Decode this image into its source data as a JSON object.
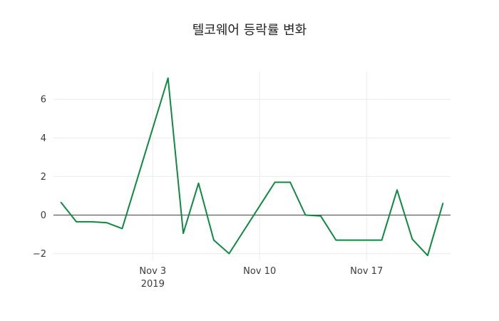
{
  "chart": {
    "title_color": "#222222",
    "line_color": "#0e8a40",
    "zero_line_color": "#444444",
    "grid_color": "#e9edf0",
    "tick_color": "#3b3b3b"
  },
  "chart_data": {
    "type": "line",
    "title": "텔코웨어 등락률 변화",
    "xlabel": "",
    "ylabel": "",
    "legend": "none",
    "grid": true,
    "x": [
      "Oct 28",
      "Oct 29",
      "Oct 30",
      "Oct 31",
      "Nov 1",
      "Nov 4",
      "Nov 5",
      "Nov 6",
      "Nov 7",
      "Nov 8",
      "Nov 11",
      "Nov 12",
      "Nov 13",
      "Nov 14",
      "Nov 15",
      "Nov 18",
      "Nov 19",
      "Nov 20",
      "Nov 21",
      "Nov 22"
    ],
    "day_offsets": [
      0,
      1,
      2,
      3,
      4,
      7,
      8,
      9,
      10,
      11,
      14,
      15,
      16,
      17,
      18,
      21,
      22,
      23,
      24,
      25
    ],
    "values": [
      0.65,
      -0.35,
      -0.35,
      -0.4,
      -0.7,
      7.1,
      -0.95,
      1.65,
      -1.3,
      -2.0,
      1.7,
      1.7,
      0.0,
      -0.05,
      -1.3,
      -1.3,
      1.3,
      -1.25,
      -2.1,
      0.6
    ],
    "y_ticks": [
      -2,
      0,
      2,
      4,
      6
    ],
    "x_ticks": [
      {
        "day": 6,
        "label": "Nov 3",
        "sublabel": "2019"
      },
      {
        "day": 13,
        "label": "Nov 10",
        "sublabel": ""
      },
      {
        "day": 20,
        "label": "Nov 17",
        "sublabel": ""
      }
    ],
    "ylim": [
      -2.35,
      7.45
    ],
    "xlim_days": [
      -0.5,
      25.5
    ]
  }
}
